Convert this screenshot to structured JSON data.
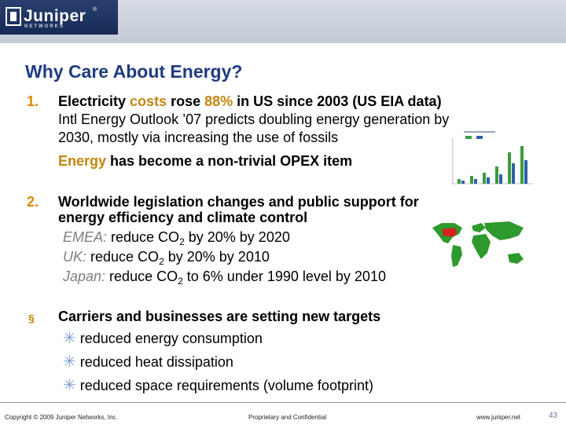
{
  "brand": {
    "name": "Juniper",
    "sub": "NETWORKS",
    "reg": "®"
  },
  "title": "Why Care About Energy?",
  "point1": {
    "marker": "1.",
    "line1_a": "Electricity ",
    "line1_b": "costs",
    "line1_c": " rose ",
    "line1_d": "88%",
    "line1_e": " in US since 2003 (US EIA data)",
    "line2": "Intl Energy Outlook ’07 predicts doubling energy generation by",
    "line3": "2030, mostly via increasing the use of  fossils",
    "line4_a": "Energy",
    "line4_b": " has become a non-trivial OPEX item"
  },
  "point2": {
    "marker": "2.",
    "line1": "Worldwide legislation changes and public support for",
    "line2": "energy efficiency and climate control",
    "emea_label": "EMEA:",
    "emea_a": " reduce CO",
    "emea_sub": "2",
    "emea_b": " by 20% by 2020",
    "uk_label": "UK:",
    "uk_a": "  reduce CO",
    "uk_sub": "2",
    "uk_b": " by 20% by 2010",
    "japan_label": "Japan:",
    "japan_a": " reduce CO",
    "japan_sub": "2",
    "japan_b": " to 6% under 1990 level by 2010"
  },
  "point3": {
    "marker": "§",
    "heading": "Carriers and businesses are setting new targets",
    "bullets": [
      "reduced energy consumption",
      "reduced heat dissipation",
      "reduced space requirements (volume footprint)"
    ],
    "bullet_glyph": "✳"
  },
  "footer": {
    "copyright": "Copyright © 2009 Juniper Networks, Inc.",
    "confidential": "Proprietary and Confidential",
    "url": "www.juniper.net",
    "page": "43"
  },
  "colors": {
    "title": "#1f3b80",
    "accent": "#c2860e",
    "chart_bar_green": "#3d9b3d",
    "chart_bar_blue": "#2f5fa8",
    "map_green": "#2e9a2e",
    "map_red": "#d62020"
  }
}
